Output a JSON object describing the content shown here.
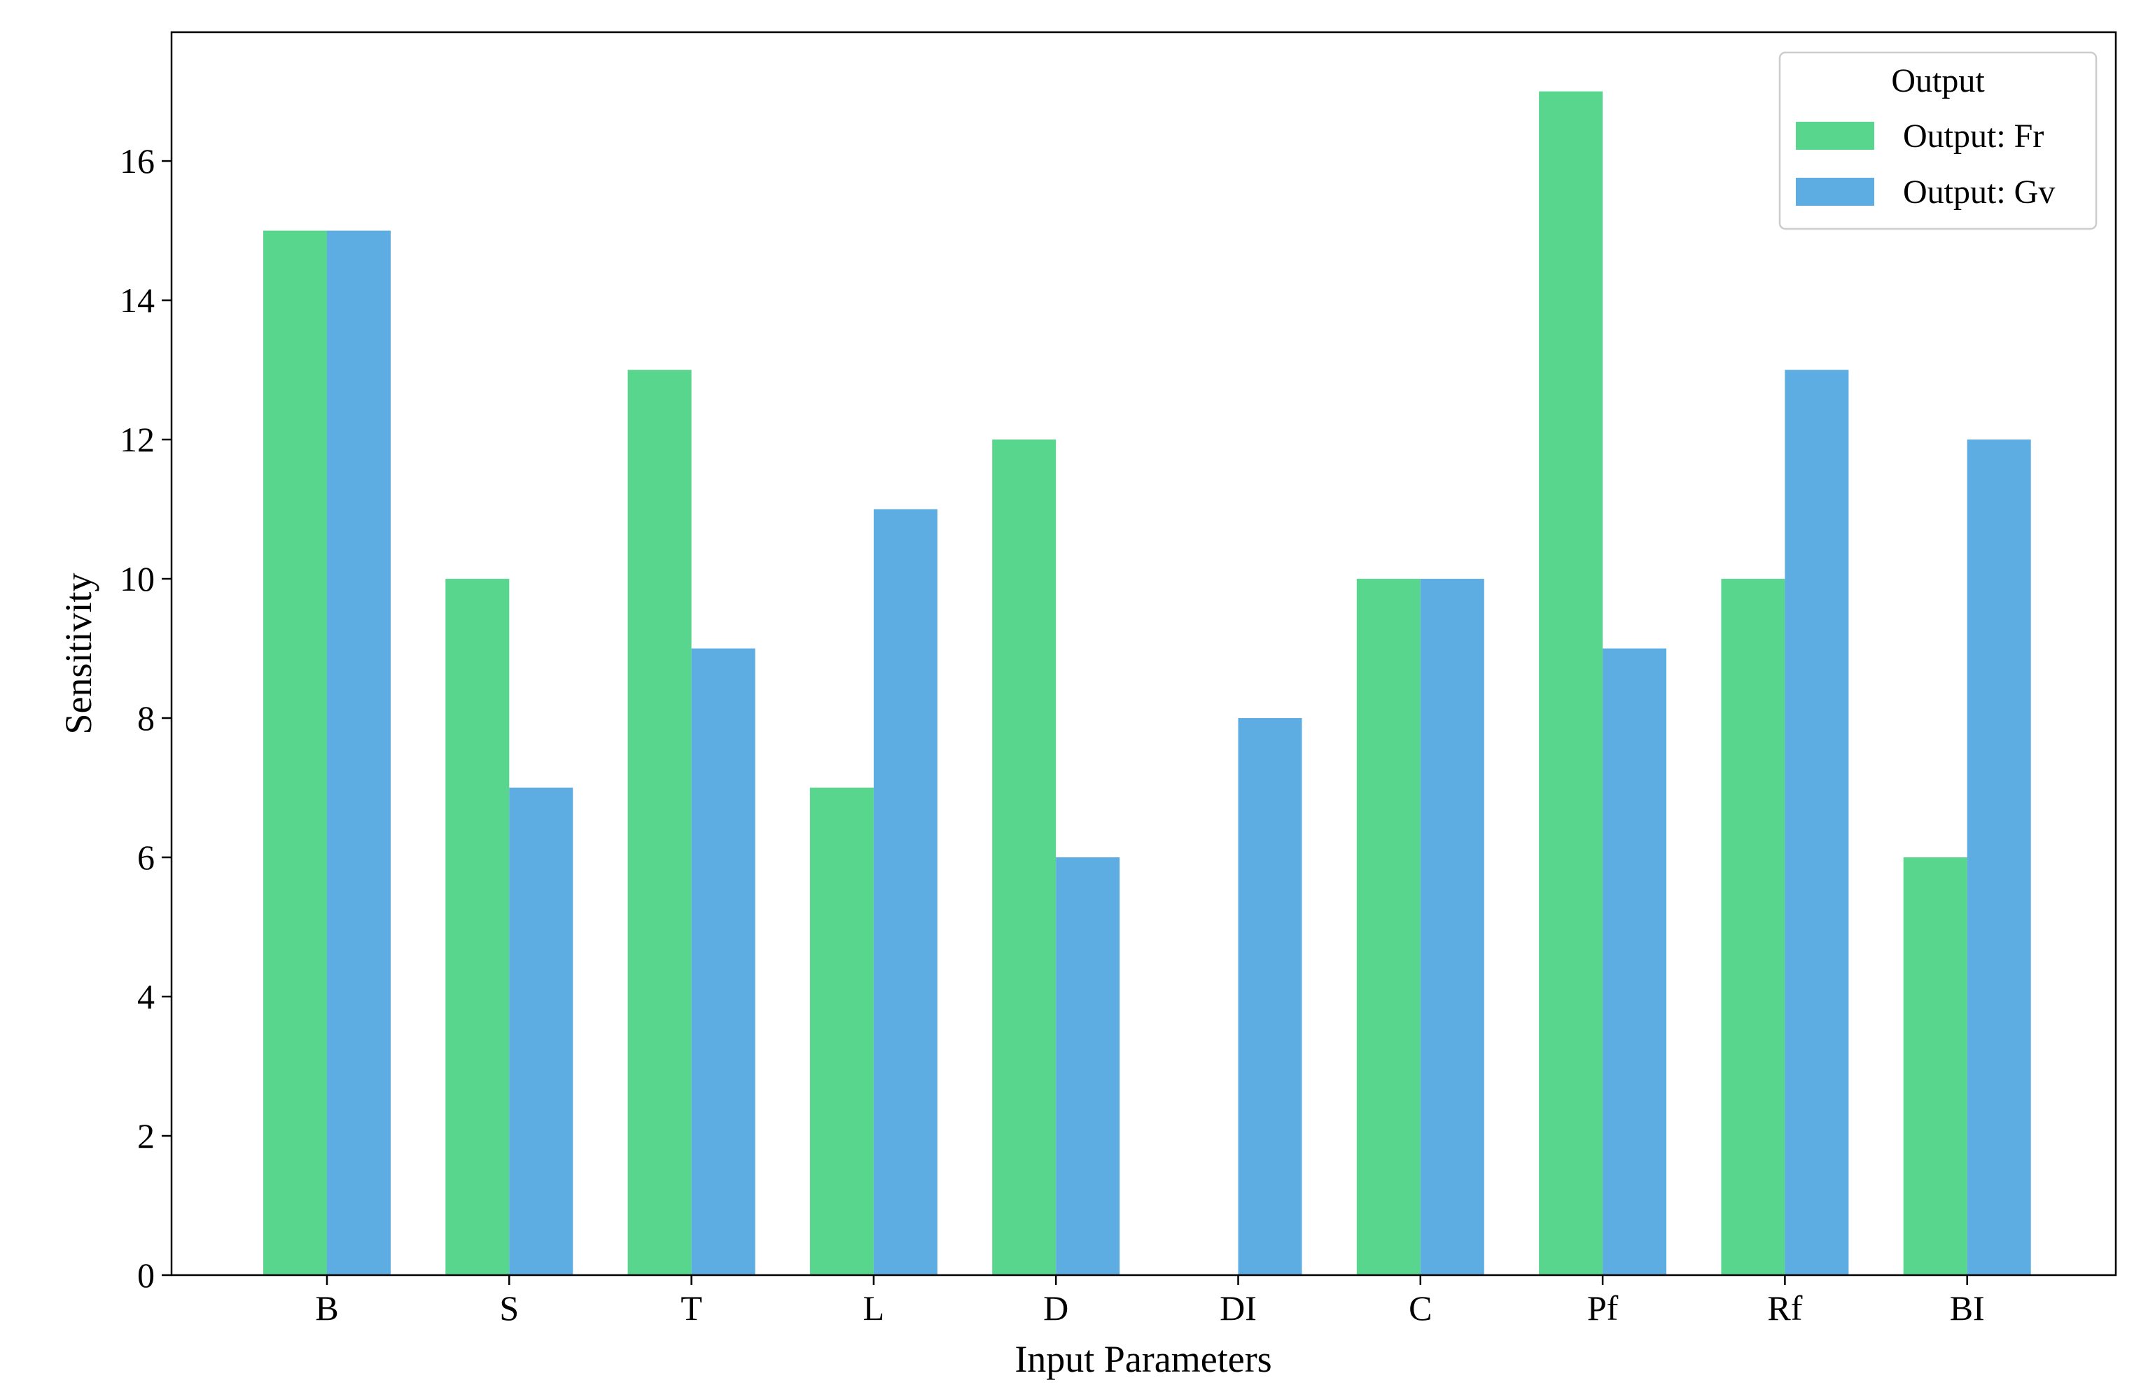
{
  "chart_data": {
    "type": "bar",
    "title": "",
    "xlabel": "Input Parameters",
    "ylabel": "Sensitivity",
    "categories": [
      "B",
      "S",
      "T",
      "L",
      "D",
      "DI",
      "C",
      "Pf",
      "Rf",
      "BI"
    ],
    "series": [
      {
        "name": "Output: Fr",
        "color": "#58D68D",
        "values": [
          15,
          10,
          13,
          7,
          12,
          0,
          10,
          17,
          10,
          6
        ]
      },
      {
        "name": "Output: Gv",
        "color": "#5DADE2",
        "values": [
          15,
          7,
          9,
          11,
          6,
          8,
          10,
          9,
          13,
          12
        ]
      }
    ],
    "ylim": [
      0,
      17.85
    ],
    "yticks": [
      0,
      2,
      4,
      6,
      8,
      10,
      12,
      14,
      16
    ],
    "grid": false,
    "legend": {
      "title": "Output",
      "placement": "top-right"
    }
  }
}
